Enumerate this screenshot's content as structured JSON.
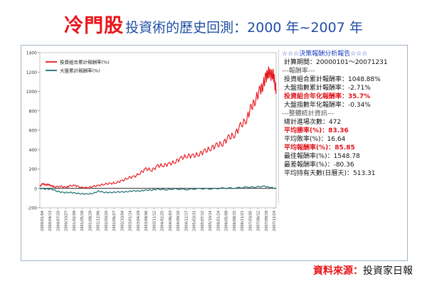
{
  "title": {
    "main": "冷門股",
    "sub": "投資術的歷史回測：2000 年~2007 年"
  },
  "report": {
    "heading": "☆☆☆決策報酬分析報告☆☆☆",
    "period_label": "計算期間：",
    "period_value": "20000101～20071231",
    "section_return": "---報酬率---",
    "portfolio_cum_label": "投資組合累計報酬率：",
    "portfolio_cum_value": "1048.88%",
    "index_cum_label": "大盤指數累計報酬率：",
    "index_cum_value": "-2.71%",
    "portfolio_ann_label": "投資組合年化報酬率：",
    "portfolio_ann_value": "35.7%",
    "index_ann_label": "大盤指數年化報酬率：",
    "index_ann_value": "-0.34%",
    "section_stats": "---整體統計資訊---",
    "trades_label": "總計進場次數：",
    "trades_value": "472",
    "win_rate_label": "平均勝率(%)：",
    "win_rate_value": "83.36",
    "loss_rate_label": "平均敗率(%)：",
    "loss_rate_value": "16.64",
    "avg_return_label": "平均報酬率(%)：",
    "avg_return_value": "85.85",
    "max_return_label": "最佳報酬率(%)：",
    "max_return_value": "1548.78",
    "min_return_label": "最差報酬率(%)：",
    "min_return_value": "-80.36",
    "hold_days_label": "平均持有天數(日曆天)：",
    "hold_days_value": "513.31"
  },
  "source": {
    "label": "資料來源：",
    "value": "投資家日報"
  },
  "colors": {
    "portfolio": "#e8141a",
    "index": "#1f6f73",
    "title": "#e8141a",
    "subtitle": "#1f4fa3"
  },
  "chart_data": {
    "type": "line",
    "title": "",
    "xlabel": "",
    "ylabel": "",
    "ylim": [
      -200,
      1400
    ],
    "yticks": [
      -200,
      0,
      200,
      400,
      600,
      800,
      1000,
      1200,
      1400
    ],
    "xlim": [
      2000.0,
      2008.0
    ],
    "grid": false,
    "legend_position": "top-left",
    "x_tick_labels": [
      "2000/01/04",
      "2000/04/13",
      "2000/07/20",
      "2000/10/27",
      "2001/02/09",
      "2001/05/18",
      "2001/08/29",
      "2001/12/06",
      "2002/03/20",
      "2002/06/27",
      "2002/10/04",
      "2003/01/14",
      "2003/04/29",
      "2003/08/06",
      "2003/11/12",
      "2004/02/25",
      "2004/06/03",
      "2004/09/10",
      "2004/12/17",
      "2005/03/31",
      "2005/07/12",
      "2005/10/14",
      "2006/01/24",
      "2006/05/08",
      "2006/08/15",
      "2006/11/21",
      "2007/03/05",
      "2007/06/12",
      "2007/09/18",
      "2007/12/24"
    ],
    "series": [
      {
        "name": "投資組合累計報酬率(%)",
        "x": [
          2000.0,
          2000.1,
          2000.2,
          2000.3,
          2000.4,
          2000.5,
          2000.7,
          2000.9,
          2001.0,
          2001.2,
          2001.4,
          2001.6,
          2001.8,
          2002.0,
          2002.2,
          2002.4,
          2002.6,
          2002.8,
          2003.0,
          2003.2,
          2003.4,
          2003.6,
          2003.8,
          2004.0,
          2004.2,
          2004.4,
          2004.6,
          2004.8,
          2005.0,
          2005.2,
          2005.4,
          2005.6,
          2005.8,
          2006.0,
          2006.2,
          2006.4,
          2006.6,
          2006.8,
          2007.0,
          2007.15,
          2007.3,
          2007.45,
          2007.55,
          2007.65,
          2007.72,
          2007.8,
          2007.88,
          2007.94,
          2008.0
        ],
        "values": [
          20,
          50,
          35,
          40,
          25,
          15,
          20,
          10,
          25,
          30,
          10,
          5,
          20,
          30,
          45,
          50,
          60,
          80,
          110,
          120,
          160,
          200,
          190,
          230,
          240,
          250,
          280,
          310,
          340,
          330,
          360,
          380,
          420,
          440,
          470,
          520,
          560,
          640,
          720,
          820,
          920,
          1000,
          1070,
          1130,
          1210,
          1160,
          1200,
          1100,
          1020
        ]
      },
      {
        "name": "大盤累計報酬率(%)",
        "x": [
          2000.0,
          2000.2,
          2000.4,
          2000.6,
          2000.8,
          2001.0,
          2001.2,
          2001.4,
          2001.6,
          2001.8,
          2002.0,
          2002.2,
          2002.4,
          2002.6,
          2002.8,
          2003.0,
          2003.2,
          2003.4,
          2003.6,
          2003.8,
          2004.0,
          2004.3,
          2004.6,
          2005.0,
          2005.4,
          2005.8,
          2006.2,
          2006.6,
          2007.0,
          2007.3,
          2007.6,
          2007.8,
          2008.0
        ],
        "values": [
          0,
          -5,
          -10,
          -30,
          -45,
          -40,
          -50,
          -55,
          -60,
          -50,
          -30,
          -40,
          -45,
          -35,
          -40,
          -30,
          -28,
          -25,
          -20,
          -15,
          -10,
          -12,
          -8,
          -10,
          -5,
          -3,
          0,
          5,
          10,
          15,
          20,
          12,
          -3
        ]
      }
    ]
  }
}
